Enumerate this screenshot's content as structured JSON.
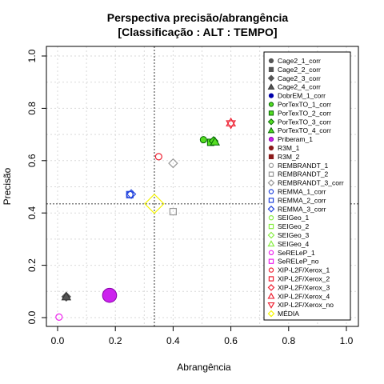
{
  "chart_data": {
    "type": "scatter",
    "title": "Perspectiva precisão/abrangência",
    "subtitle": "[Classificação : ALT : TEMPO]",
    "xlabel": "Abrangência",
    "ylabel": "Precisão",
    "xlim": [
      0,
      1
    ],
    "ylim": [
      0,
      1
    ],
    "xticks": [
      "0.0",
      "0.2",
      "0.4",
      "0.6",
      "0.8",
      "1.0"
    ],
    "yticks": [
      "0.0",
      "0.2",
      "0.4",
      "0.6",
      "0.8",
      "1.0"
    ],
    "grid": true,
    "legend_position": "top-right",
    "reference_lines": {
      "x": 0.335,
      "y": 0.435,
      "style": "dotted",
      "color": "#808080"
    },
    "series": [
      {
        "name": "Cage2_1_corr",
        "shape": "circle",
        "color": "#555555",
        "fill": "#555555",
        "size": 1,
        "points": []
      },
      {
        "name": "Cage2_2_corr",
        "shape": "square",
        "color": "#555555",
        "fill": "#555555",
        "size": 1,
        "points": []
      },
      {
        "name": "Cage2_3_corr",
        "shape": "diamond",
        "color": "#555555",
        "fill": "#555555",
        "size": 1,
        "points": [
          [
            0.03,
            0.08
          ]
        ]
      },
      {
        "name": "Cage2_4_corr",
        "shape": "triangle",
        "color": "#333333",
        "fill": "#555555",
        "size": 1,
        "points": [
          [
            0.03,
            0.08
          ]
        ]
      },
      {
        "name": "DobrEM_1_corr",
        "shape": "circle",
        "color": "#0000aa",
        "fill": "#0000aa",
        "size": 1,
        "points": []
      },
      {
        "name": "PorTexTO_1_corr",
        "shape": "circle",
        "color": "#006400",
        "fill": "#55dd22",
        "size": 1,
        "points": [
          [
            0.505,
            0.68
          ]
        ]
      },
      {
        "name": "PorTexTO_2_corr",
        "shape": "square",
        "color": "#006400",
        "fill": "#55dd22",
        "size": 1,
        "points": [
          [
            0.53,
            0.67
          ]
        ]
      },
      {
        "name": "PorTexTO_3_corr",
        "shape": "diamond",
        "color": "#006400",
        "fill": "#55dd22",
        "size": 1,
        "points": [
          [
            0.54,
            0.675
          ]
        ]
      },
      {
        "name": "PorTexTO_4_corr",
        "shape": "triangle",
        "color": "#006400",
        "fill": "#55dd22",
        "size": 1,
        "points": [
          [
            0.545,
            0.672
          ]
        ]
      },
      {
        "name": "Priberam_1",
        "shape": "circle",
        "color": "#8800aa",
        "fill": "#cc22ee",
        "size": 2.2,
        "points": [
          [
            0.18,
            0.085
          ]
        ]
      },
      {
        "name": "R3M_1",
        "shape": "circle",
        "color": "#8b1a1a",
        "fill": "#8b1a1a",
        "size": 1,
        "points": []
      },
      {
        "name": "R3M_2",
        "shape": "square",
        "color": "#8b1a1a",
        "fill": "#8b1a1a",
        "size": 1,
        "points": []
      },
      {
        "name": "REMBRANDT_1",
        "shape": "circle-open",
        "color": "#999999",
        "fill": "none",
        "size": 1,
        "points": []
      },
      {
        "name": "REMBRANDT_2",
        "shape": "square-open",
        "color": "#999999",
        "fill": "none",
        "size": 1,
        "points": [
          [
            0.4,
            0.405
          ]
        ]
      },
      {
        "name": "REMBRANDT_3_corr",
        "shape": "diamond-open",
        "color": "#999999",
        "fill": "none",
        "size": 1,
        "points": [
          [
            0.4,
            0.59
          ]
        ]
      },
      {
        "name": "REMMA_1_corr",
        "shape": "circle-open",
        "color": "#2244dd",
        "fill": "none",
        "size": 1,
        "points": [
          [
            0.25,
            0.47
          ]
        ]
      },
      {
        "name": "REMMA_2_corr",
        "shape": "square-open",
        "color": "#2244dd",
        "fill": "none",
        "size": 1,
        "points": [
          [
            0.25,
            0.47
          ]
        ]
      },
      {
        "name": "REMMA_3_corr",
        "shape": "diamond-open",
        "color": "#2244dd",
        "fill": "none",
        "size": 1,
        "points": [
          [
            0.255,
            0.472
          ]
        ]
      },
      {
        "name": "SEIGeo_1",
        "shape": "circle-open",
        "color": "#88ee44",
        "fill": "none",
        "size": 1,
        "points": []
      },
      {
        "name": "SEIGeo_2",
        "shape": "square-open",
        "color": "#88ee44",
        "fill": "none",
        "size": 1,
        "points": []
      },
      {
        "name": "SEIGeo_3",
        "shape": "diamond-open",
        "color": "#88ee44",
        "fill": "none",
        "size": 1,
        "points": []
      },
      {
        "name": "SEIGeo_4",
        "shape": "triangle-open",
        "color": "#88ee44",
        "fill": "none",
        "size": 1,
        "points": []
      },
      {
        "name": "SeRELeP_1",
        "shape": "circle-open",
        "color": "#ee22ee",
        "fill": "none",
        "size": 1,
        "points": [
          [
            0.005,
            0.002
          ]
        ]
      },
      {
        "name": "SeRELeP_no",
        "shape": "square-open",
        "color": "#ee22ee",
        "fill": "none",
        "size": 1,
        "points": []
      },
      {
        "name": "XIP-L2F/Xerox_1",
        "shape": "circle-open",
        "color": "#ee2233",
        "fill": "none",
        "size": 1,
        "points": [
          [
            0.35,
            0.615
          ]
        ]
      },
      {
        "name": "XIP-L2F/Xerox_2",
        "shape": "square-open",
        "color": "#ee2233",
        "fill": "none",
        "size": 1,
        "points": []
      },
      {
        "name": "XIP-L2F/Xerox_3",
        "shape": "diamond-open",
        "color": "#ee2233",
        "fill": "none",
        "size": 1,
        "points": []
      },
      {
        "name": "XIP-L2F/Xerox_4",
        "shape": "triangle-open",
        "color": "#ee2233",
        "fill": "none",
        "size": 1,
        "points": [
          [
            0.6,
            0.745
          ]
        ]
      },
      {
        "name": "XIP-L2F/Xerox_no",
        "shape": "triangle-down-open",
        "color": "#ee2233",
        "fill": "none",
        "size": 1,
        "points": [
          [
            0.6,
            0.74
          ]
        ]
      },
      {
        "name": "MÉDIA",
        "shape": "diamond-open",
        "color": "#f5f500",
        "fill": "none",
        "size": 2.2,
        "points": [
          [
            0.335,
            0.435
          ]
        ]
      }
    ]
  }
}
